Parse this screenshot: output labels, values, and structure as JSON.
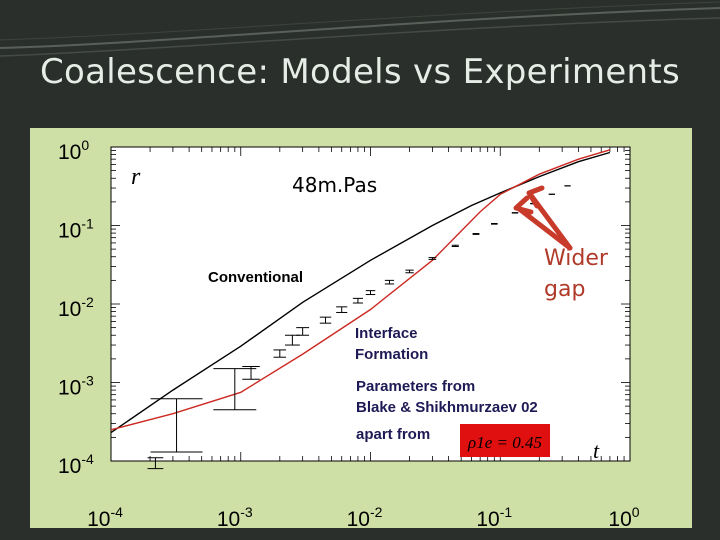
{
  "slide": {
    "title": "Coalescence: Models vs Experiments",
    "accent_color": "#cfe0a6",
    "background_color": "#2b2f2c"
  },
  "chart_data": {
    "type": "line",
    "xscale": "log",
    "yscale": "log",
    "xlim": [
      0.0001,
      1
    ],
    "ylim": [
      0.0001,
      1
    ],
    "x_ticks": [
      {
        "base": "10",
        "exp": "-4",
        "value": 0.0001
      },
      {
        "base": "10",
        "exp": "-3",
        "value": 0.001
      },
      {
        "base": "10",
        "exp": "-2",
        "value": 0.01
      },
      {
        "base": "10",
        "exp": "-1",
        "value": 0.1
      },
      {
        "base": "10",
        "exp": "0",
        "value": 1
      }
    ],
    "y_ticks": [
      {
        "base": "10",
        "exp": "0",
        "value": 1
      },
      {
        "base": "10",
        "exp": "-1",
        "value": 0.1
      },
      {
        "base": "10",
        "exp": "-2",
        "value": 0.01
      },
      {
        "base": "10",
        "exp": "-3",
        "value": 0.001
      },
      {
        "base": "10",
        "exp": "-4",
        "value": 0.0001
      }
    ],
    "xlabel": "t",
    "ylabel": "r",
    "annotations": {
      "viscosity": "48m.Pas",
      "conventional": "Conventional",
      "interface_line1": "Interface",
      "interface_line2": "Formation",
      "wider_line1": "Wider",
      "wider_line2": "gap",
      "params_line1": "Parameters from",
      "params_line2": "Blake & Shikhmurzaev 02",
      "params_line3": "apart from",
      "formula": "ρ1e = 0.45"
    },
    "series": [
      {
        "name": "Conventional",
        "color": "#000000",
        "points": [
          [
            0.0001,
            0.00023
          ],
          [
            0.0003,
            0.0008
          ],
          [
            0.001,
            0.0029
          ],
          [
            0.003,
            0.0105
          ],
          [
            0.01,
            0.036
          ],
          [
            0.03,
            0.1
          ],
          [
            0.06,
            0.18
          ],
          [
            0.1,
            0.26
          ],
          [
            0.2,
            0.42
          ],
          [
            0.4,
            0.65
          ],
          [
            0.7,
            0.85
          ]
        ]
      },
      {
        "name": "Interface Formation",
        "color": "#cc2a22",
        "points": [
          [
            0.0001,
            0.00025
          ],
          [
            0.0003,
            0.0004
          ],
          [
            0.001,
            0.00075
          ],
          [
            0.003,
            0.0023
          ],
          [
            0.01,
            0.0085
          ],
          [
            0.03,
            0.036
          ],
          [
            0.07,
            0.15
          ],
          [
            0.1,
            0.25
          ],
          [
            0.2,
            0.45
          ],
          [
            0.4,
            0.7
          ],
          [
            0.7,
            0.92
          ]
        ]
      }
    ],
    "experiment_points": [
      {
        "x": 0.00022,
        "y": 0.00011,
        "lo": 8e-05,
        "hi": 0.00011
      },
      {
        "x": 0.00032,
        "y": 0.0002,
        "lo": 0.00013,
        "hi": 0.00062
      },
      {
        "x": 0.0009,
        "y": 0.0007,
        "lo": 0.00045,
        "hi": 0.0015
      },
      {
        "x": 0.0012,
        "y": 0.0013,
        "lo": 0.0011,
        "hi": 0.0016
      },
      {
        "x": 0.002,
        "y": 0.0023,
        "lo": 0.0021,
        "hi": 0.0026
      },
      {
        "x": 0.0025,
        "y": 0.0035,
        "lo": 0.003,
        "hi": 0.004
      },
      {
        "x": 0.003,
        "y": 0.0045,
        "lo": 0.004,
        "hi": 0.005
      },
      {
        "x": 0.0045,
        "y": 0.0062,
        "lo": 0.0057,
        "hi": 0.0068
      },
      {
        "x": 0.006,
        "y": 0.0085,
        "lo": 0.0078,
        "hi": 0.0092
      },
      {
        "x": 0.008,
        "y": 0.011,
        "lo": 0.0103,
        "hi": 0.0118
      },
      {
        "x": 0.01,
        "y": 0.014,
        "lo": 0.0132,
        "hi": 0.0148
      },
      {
        "x": 0.014,
        "y": 0.019,
        "lo": 0.018,
        "hi": 0.02
      },
      {
        "x": 0.02,
        "y": 0.026,
        "lo": 0.025,
        "hi": 0.027
      },
      {
        "x": 0.03,
        "y": 0.038,
        "lo": 0.037,
        "hi": 0.039
      },
      {
        "x": 0.045,
        "y": 0.055,
        "lo": 0.054,
        "hi": 0.056
      },
      {
        "x": 0.065,
        "y": 0.078,
        "lo": 0.077,
        "hi": 0.079
      },
      {
        "x": 0.09,
        "y": 0.105,
        "lo": 0.104,
        "hi": 0.106
      },
      {
        "x": 0.13,
        "y": 0.145,
        "lo": 0.144,
        "hi": 0.146
      },
      {
        "x": 0.18,
        "y": 0.19,
        "lo": 0.189,
        "hi": 0.191
      },
      {
        "x": 0.25,
        "y": 0.25,
        "lo": 0.249,
        "hi": 0.251
      },
      {
        "x": 0.33,
        "y": 0.32,
        "lo": 0.319,
        "hi": 0.321
      }
    ]
  }
}
